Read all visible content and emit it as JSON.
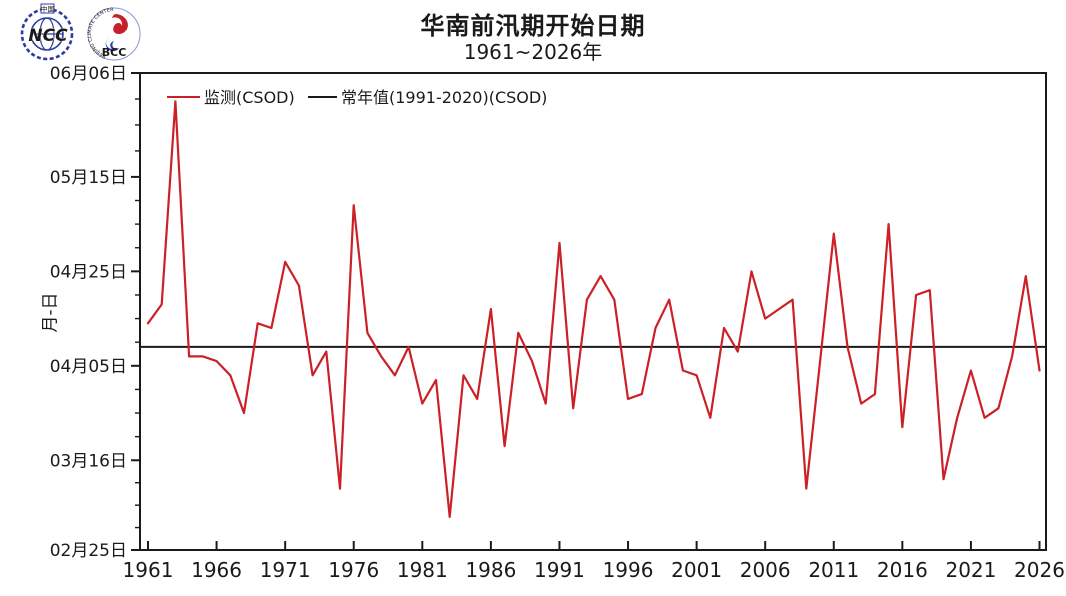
{
  "header": {
    "title": "华南前汛期开始日期",
    "subtitle": "1961~2026年"
  },
  "logos": {
    "left_top_text": "中国",
    "left_label": "NCC",
    "right_label": "BCC",
    "right_ring_text": "BEIJING CLIMATE CENTER",
    "blue": "#2b3c9e",
    "red": "#c8202a"
  },
  "legend": {
    "monitor_label": "监测(CSOD)",
    "normal_label": "常年值(1991-2020)(CSOD)"
  },
  "axes": {
    "y_label": "月-日",
    "y_range_day_of_year": [
      56,
      157
    ],
    "y_major_ticks": [
      {
        "day": 157,
        "label": "06月06日"
      },
      {
        "day": 135,
        "label": "05月15日"
      },
      {
        "day": 115,
        "label": "04月25日"
      },
      {
        "day": 95,
        "label": "04月05日"
      },
      {
        "day": 75,
        "label": "03月16日"
      },
      {
        "day": 56,
        "label": "02月25日"
      }
    ],
    "x_range": [
      1961,
      2026
    ],
    "x_major_ticks": [
      1961,
      1966,
      1971,
      1976,
      1981,
      1986,
      1991,
      1996,
      2001,
      2006,
      2011,
      2016,
      2021,
      2026
    ]
  },
  "colors": {
    "monitor": "#cc2027",
    "normal": "#1a1a1a",
    "axis": "#1a1a1a"
  },
  "chart_data": {
    "type": "line",
    "title": "华南前汛期开始日期",
    "subtitle": "1961~2026年",
    "xlabel": "",
    "ylabel": "月-日",
    "grid": false,
    "legend_position": "top-left-inside",
    "x_range": [
      1961,
      2026
    ],
    "y_axis_date_ticks_top_to_bottom": [
      "06月06日",
      "05月15日",
      "04月25日",
      "04月05日",
      "03月16日",
      "02月25日"
    ],
    "x": [
      1961,
      1962,
      1963,
      1964,
      1965,
      1966,
      1967,
      1968,
      1969,
      1970,
      1971,
      1972,
      1973,
      1974,
      1975,
      1976,
      1977,
      1978,
      1979,
      1980,
      1981,
      1982,
      1983,
      1984,
      1985,
      1986,
      1987,
      1988,
      1989,
      1990,
      1991,
      1992,
      1993,
      1994,
      1995,
      1996,
      1997,
      1998,
      1999,
      2000,
      2001,
      2002,
      2003,
      2004,
      2005,
      2006,
      2007,
      2008,
      2009,
      2010,
      2011,
      2012,
      2013,
      2014,
      2015,
      2016,
      2017,
      2018,
      2019,
      2020,
      2021,
      2022,
      2023,
      2024,
      2025,
      2026
    ],
    "series": [
      {
        "name": "监测(CSOD)",
        "type": "line",
        "color": "#cc2027",
        "unit": "day_of_year",
        "values": [
          104,
          108,
          151,
          97,
          97,
          96,
          93,
          85,
          104,
          103,
          117,
          112,
          93,
          98,
          69,
          129,
          102,
          97,
          93,
          99,
          87,
          92,
          63,
          93,
          88,
          107,
          78,
          102,
          96,
          87,
          121,
          86,
          109,
          114,
          109,
          88,
          89,
          103,
          109,
          94,
          93,
          84,
          103,
          98,
          115,
          105,
          107,
          109,
          69,
          96,
          123,
          99,
          87,
          89,
          125,
          82,
          110,
          111,
          71,
          84,
          94,
          84,
          86,
          97,
          114,
          94
        ],
        "dates": [
          "04-14",
          "04-18",
          "05-31",
          "04-07",
          "04-07",
          "04-06",
          "04-03",
          "03-26",
          "04-14",
          "04-13",
          "04-27",
          "04-22",
          "04-03",
          "04-08",
          "03-10",
          "05-09",
          "04-12",
          "04-07",
          "04-03",
          "04-09",
          "03-28",
          "04-02",
          "03-04",
          "04-03",
          "03-29",
          "04-17",
          "03-19",
          "04-12",
          "04-06",
          "03-28",
          "05-01",
          "03-27",
          "04-19",
          "04-24",
          "04-19",
          "03-29",
          "03-30",
          "04-13",
          "04-19",
          "04-04",
          "04-03",
          "03-25",
          "04-13",
          "04-08",
          "04-25",
          "04-15",
          "04-17",
          "04-19",
          "03-10",
          "04-06",
          "05-03",
          "04-09",
          "03-28",
          "03-30",
          "05-05",
          "03-23",
          "04-20",
          "04-21",
          "03-12",
          "03-25",
          "04-04",
          "03-25",
          "03-27",
          "04-07",
          "04-24",
          "04-04"
        ]
      },
      {
        "name": "常年值(1991-2020)(CSOD)",
        "type": "constant-line",
        "color": "#1a1a1a",
        "unit": "day_of_year",
        "value": 99,
        "date": "04-09"
      }
    ]
  }
}
